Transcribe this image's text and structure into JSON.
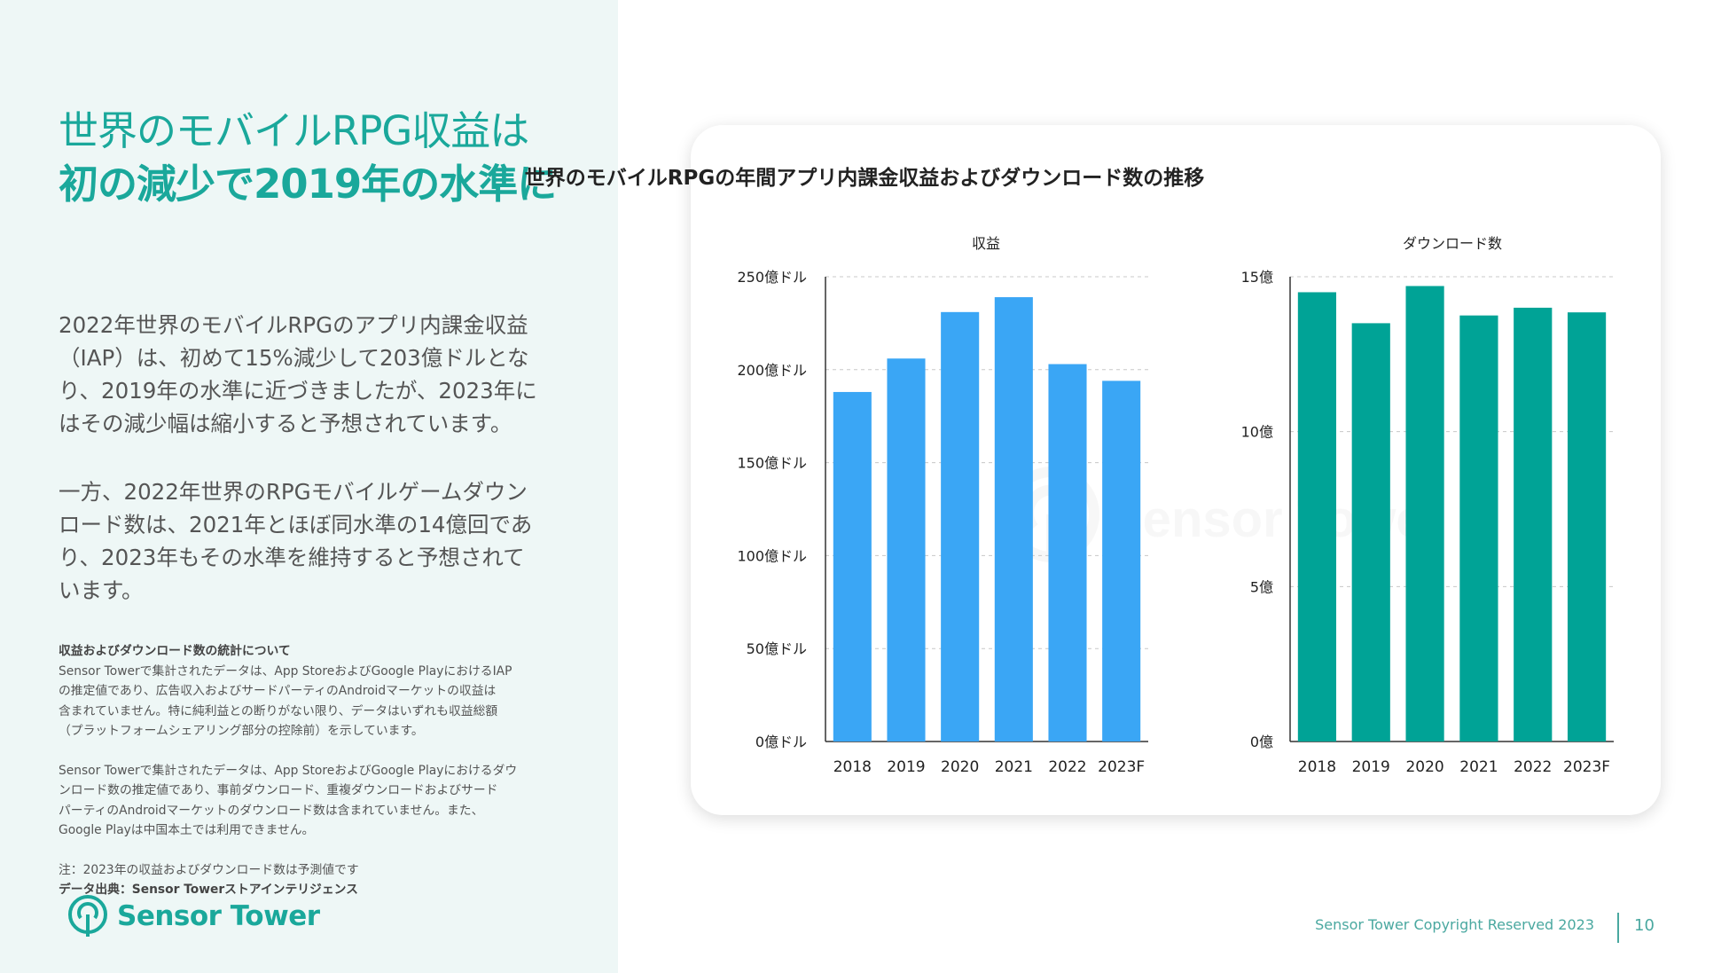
{
  "heading": {
    "line1": "世界のモバイルRPG収益は",
    "line2": "初の減少で2019年の水準に"
  },
  "body": {
    "para1": [
      "2022年世界のモバイルRPGのアプリ内課金収益",
      "（IAP）は、初めて15%減少して203億ドルとな",
      "り、2019年の水準に近づきましたが、2023年に",
      "はその減少幅は縮小すると予想されています。"
    ],
    "para2": [
      "一方、2022年世界のRPGモバイルゲームダウン",
      "ロード数は、2021年とほぼ同水準の14億回であ",
      "り、2023年もその水準を維持すると予想されて",
      "います。"
    ]
  },
  "notes": {
    "heading": "収益およびダウンロード数の統計について",
    "block1": [
      "Sensor Towerで集計されたデータは、App StoreおよびGoogle PlayにおけるIAP",
      "の推定値であり、広告収入およびサードパーティのAndroidマーケットの収益は",
      "含まれていません。特に純利益との断りがない限り、データはいずれも収益総額",
      "（プラットフォームシェアリング部分の控除前）を示しています。"
    ],
    "block2": [
      "Sensor Towerで集計されたデータは、App StoreおよびGoogle Playにおけるダウ",
      "ンロード数の推定値であり、事前ダウンロード、重複ダウンロードおよびサード",
      "パーティのAndroidマーケットのダウンロード数は含まれていません。また、",
      "Google Playは中国本土では利用できません。"
    ],
    "note": "注：2023年の収益およびダウンロード数は予測値です",
    "source": "データ出典：Sensor Towerストアインテリジェンス"
  },
  "logo": {
    "text": "Sensor Tower",
    "icon": "sensor-tower-logo-icon",
    "color": "#1aa89b"
  },
  "watermark": "Sensor Tower",
  "footer": {
    "copyright": "Sensor Tower Copyright Reserved 2023",
    "page": "10"
  },
  "chart_title": "世界のモバイルRPGの年間アプリ内課金収益およびダウンロード数の推移",
  "chart_data": [
    {
      "type": "bar",
      "title": "収益",
      "categories": [
        "2018",
        "2019",
        "2020",
        "2021",
        "2022",
        "2023F"
      ],
      "values": [
        188,
        206,
        231,
        239,
        203,
        194
      ],
      "ylim": [
        0,
        250
      ],
      "yticks": [
        0,
        50,
        100,
        150,
        200,
        250
      ],
      "tick_labels": [
        "0億ドル",
        "50億ドル",
        "100億ドル",
        "150億ドル",
        "200億ドル",
        "250億ドル"
      ],
      "unit": "億ドル",
      "color": "#3aa6f5",
      "grid": true
    },
    {
      "type": "bar",
      "title": "ダウンロード数",
      "categories": [
        "2018",
        "2019",
        "2020",
        "2021",
        "2022",
        "2023F"
      ],
      "values": [
        14.5,
        13.5,
        14.7,
        13.75,
        14.0,
        13.85
      ],
      "ylim": [
        0,
        15
      ],
      "yticks": [
        0,
        5,
        10,
        15
      ],
      "tick_labels": [
        "0億",
        "5億",
        "10億",
        "15億"
      ],
      "unit": "億",
      "color": "#00a396",
      "grid": true
    }
  ]
}
